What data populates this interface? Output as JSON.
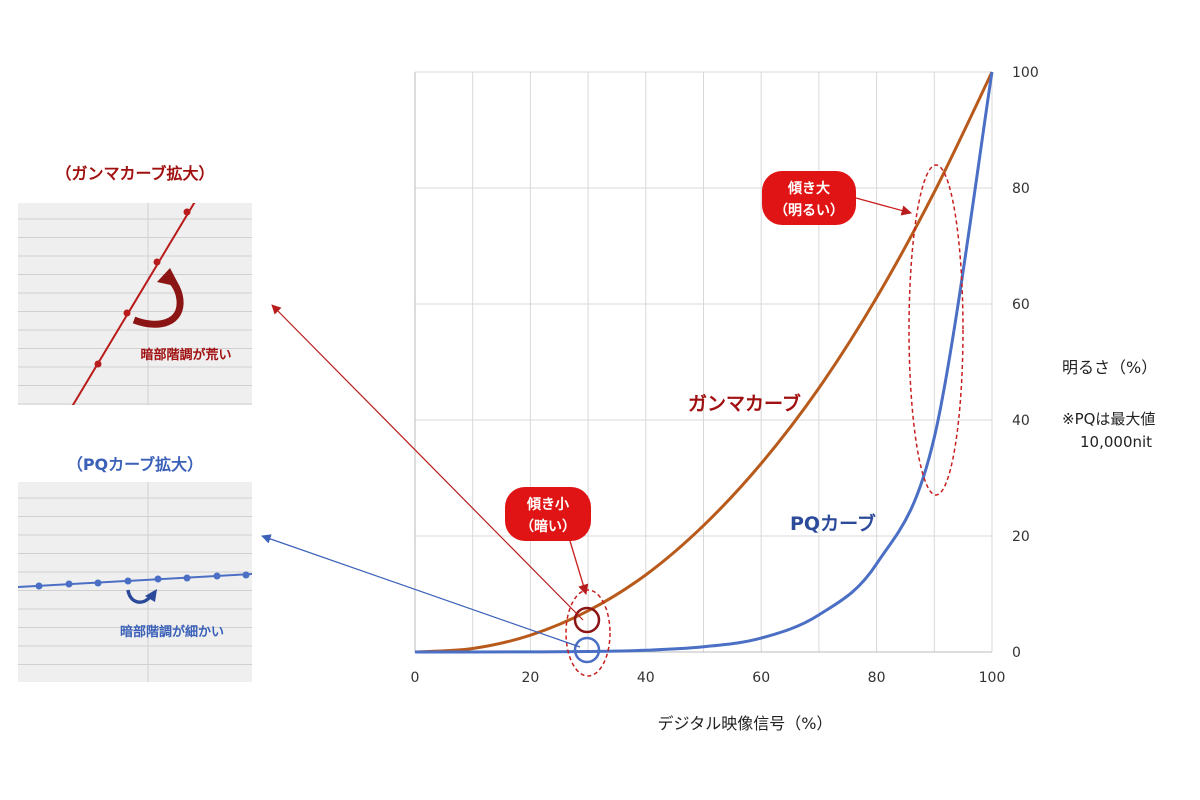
{
  "chart_data": {
    "type": "line",
    "xlabel": "デジタル映像信号（%）",
    "ylabel": "明るさ（%）",
    "note_line1": "※PQは最大値",
    "note_line2": "10,000nit",
    "xlim": [
      0,
      100
    ],
    "ylim": [
      0,
      100
    ],
    "x_ticks": [
      "0",
      "20",
      "40",
      "60",
      "80",
      "100"
    ],
    "y_ticks": [
      "0",
      "20",
      "40",
      "60",
      "80",
      "100"
    ],
    "grid": true,
    "y_axis_side": "right",
    "x": [
      0,
      10,
      20,
      30,
      40,
      50,
      60,
      70,
      80,
      90,
      100
    ],
    "series": [
      {
        "name": "ガンマカーブ",
        "color": "#b85a1b",
        "label_color": "#a01010",
        "values": [
          0,
          0.6,
          2.9,
          7.1,
          13.3,
          21.8,
          32.5,
          45.5,
          61.1,
          79.3,
          100
        ]
      },
      {
        "name": "PQカーブ",
        "color": "#4a6fc4",
        "label_color": "#2b4a9a",
        "values": [
          0,
          0.0,
          0.02,
          0.09,
          0.3,
          0.9,
          2.4,
          6.4,
          15.2,
          37.0,
          100
        ]
      }
    ],
    "callouts": [
      {
        "line1": "傾き大",
        "line2": "（明るい）",
        "x": 90,
        "y": 55
      },
      {
        "line1": "傾き小",
        "line2": "（暗い）",
        "x": 30,
        "y": 3
      }
    ],
    "zooms": [
      {
        "title": "（ガンマカーブ拡大）",
        "note": "暗部階調が荒い",
        "color": "#a01010",
        "line_color": "#b81c1c"
      },
      {
        "title": "（PQカーブ拡大）",
        "note": "暗部階調が細かい",
        "color": "#3a60b8",
        "line_color": "#4a6fc4"
      }
    ]
  }
}
